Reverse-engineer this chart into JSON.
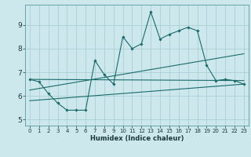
{
  "title": "",
  "xlabel": "Humidex (Indice chaleur)",
  "background_color": "#cce8ec",
  "grid_color": "#aacfd4",
  "line_color": "#1a6b6b",
  "xlim": [
    -0.5,
    23.5
  ],
  "ylim": [
    4.75,
    9.85
  ],
  "xticks": [
    0,
    1,
    2,
    3,
    4,
    5,
    6,
    7,
    8,
    9,
    10,
    11,
    12,
    13,
    14,
    15,
    16,
    17,
    18,
    19,
    20,
    21,
    22,
    23
  ],
  "yticks": [
    5,
    6,
    7,
    8,
    9
  ],
  "series1_x": [
    0,
    1,
    2,
    3,
    4,
    5,
    6,
    7,
    8,
    9,
    10,
    11,
    12,
    13,
    14,
    15,
    16,
    17,
    18,
    19,
    20,
    21,
    22,
    23
  ],
  "series1_y": [
    6.7,
    6.6,
    6.1,
    5.7,
    5.4,
    5.4,
    5.4,
    7.5,
    6.9,
    6.5,
    8.5,
    8.0,
    8.2,
    9.55,
    8.4,
    8.6,
    8.75,
    8.9,
    8.75,
    7.3,
    6.65,
    6.7,
    6.65,
    6.5
  ],
  "series2_x": [
    0,
    23
  ],
  "series2_y": [
    6.7,
    6.65
  ],
  "series3_x": [
    0,
    23
  ],
  "series3_y": [
    6.25,
    7.78
  ],
  "series4_x": [
    0,
    23
  ],
  "series4_y": [
    5.8,
    6.5
  ]
}
